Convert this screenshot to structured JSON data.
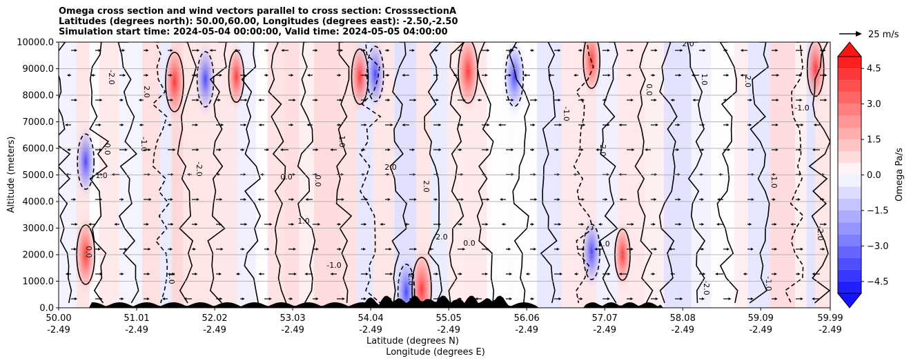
{
  "chart_data": {
    "type": "heatmap",
    "title_lines": [
      "Omega cross section and wind vectors parallel to cross section: CrosssectionA",
      "Latitudes (degrees north): 50.00,60.00, Longitudes (degrees east): -2.50,-2.50",
      "Simulation start time: 2024-05-04 00:00:00, Valid time: 2024-05-05 04:00:00"
    ],
    "ylabel": "Altitude (meters)",
    "xlabel_lines": [
      "Latitude (degrees N)",
      "Longitude (degrees E)"
    ],
    "ylim": [
      0,
      10000
    ],
    "y_ticks": [
      0,
      1000,
      2000,
      3000,
      4000,
      5000,
      6000,
      7000,
      8000,
      9000,
      10000
    ],
    "y_tick_labels": [
      "0.0",
      "1000.0",
      "2000.0",
      "3000.0",
      "4000.0",
      "5000.0",
      "6000.0",
      "7000.0",
      "8000.0",
      "9000.0",
      "10000.0"
    ],
    "grid": true,
    "x_ticks": [
      {
        "lat": "50.00",
        "lon": "-2.49"
      },
      {
        "lat": "51.01",
        "lon": "-2.49"
      },
      {
        "lat": "52.02",
        "lon": "-2.49"
      },
      {
        "lat": "53.03",
        "lon": "-2.49"
      },
      {
        "lat": "54.04",
        "lon": "-2.49"
      },
      {
        "lat": "55.05",
        "lon": "-2.49"
      },
      {
        "lat": "56.06",
        "lon": "-2.49"
      },
      {
        "lat": "57.07",
        "lon": "-2.49"
      },
      {
        "lat": "58.08",
        "lon": "-2.49"
      },
      {
        "lat": "59.09",
        "lon": "-2.49"
      },
      {
        "lat": "59.99",
        "lon": "-2.49"
      }
    ],
    "colorbar": {
      "label": "Omega Pa/s",
      "range": [
        -5,
        5
      ],
      "levels": [
        -5,
        -4.5,
        -4,
        -3.5,
        -3,
        -2.5,
        -2,
        -1.5,
        -1,
        -0.5,
        0,
        0.5,
        1,
        1.5,
        2,
        2.5,
        3,
        3.5,
        4,
        4.5,
        5
      ],
      "tick_values": [
        -4.5,
        -3.0,
        -1.5,
        0.0,
        1.5,
        3.0,
        4.5
      ],
      "tick_labels": [
        "−4.5",
        "−3.0",
        "−1.5",
        "0.0",
        "1.5",
        "3.0",
        "4.5"
      ],
      "extend": "both"
    },
    "quiver_key": "25 m/s",
    "contour_labels": [
      "0.0",
      "1.0",
      "2.0",
      "-1.0",
      "-2.0"
    ],
    "omega_features": [
      {
        "lat": 50.35,
        "alt": 2000,
        "omega": 2.5
      },
      {
        "lat": 50.35,
        "alt": 5500,
        "omega": -2.0
      },
      {
        "lat": 51.5,
        "alt": 8500,
        "omega": 2.5
      },
      {
        "lat": 51.9,
        "alt": 8600,
        "omega": -2.0
      },
      {
        "lat": 52.3,
        "alt": 8700,
        "omega": 1.5
      },
      {
        "lat": 53.9,
        "alt": 8700,
        "omega": 2.0
      },
      {
        "lat": 54.1,
        "alt": 8800,
        "omega": -2.0
      },
      {
        "lat": 55.3,
        "alt": 8900,
        "omega": 3.0
      },
      {
        "lat": 55.9,
        "alt": 8700,
        "omega": -2.5
      },
      {
        "lat": 54.7,
        "alt": 700,
        "omega": 3.0
      },
      {
        "lat": 54.5,
        "alt": 600,
        "omega": -2.0
      },
      {
        "lat": 56.9,
        "alt": 2100,
        "omega": -2.0
      },
      {
        "lat": 57.3,
        "alt": 2000,
        "omega": 1.5
      },
      {
        "lat": 56.9,
        "alt": 9300,
        "omega": 2.0
      },
      {
        "lat": 59.8,
        "alt": 9000,
        "omega": 2.0
      }
    ]
  }
}
